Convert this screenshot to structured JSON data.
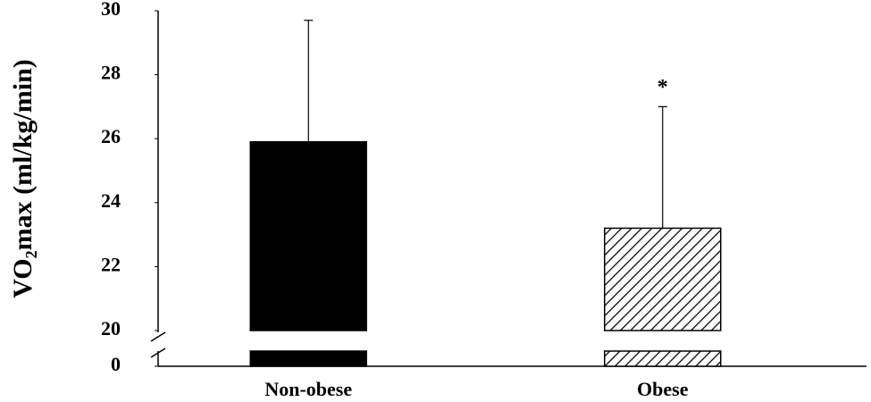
{
  "chart_data": {
    "type": "bar",
    "y_label": "VO₂max (ml/kg/min)",
    "categories": [
      "Non-obese",
      "Obese"
    ],
    "values": [
      25.9,
      23.2
    ],
    "errors": [
      3.8,
      3.8
    ],
    "colors": [
      "#000000",
      "#000000"
    ],
    "patterns": [
      "solid",
      "hatch"
    ],
    "ylim": [
      0,
      30
    ],
    "yticks": [
      0,
      20,
      22,
      24,
      26,
      28,
      30
    ],
    "y_break": true,
    "annotations": [
      {
        "text": "*",
        "category": "Obese"
      }
    ]
  }
}
